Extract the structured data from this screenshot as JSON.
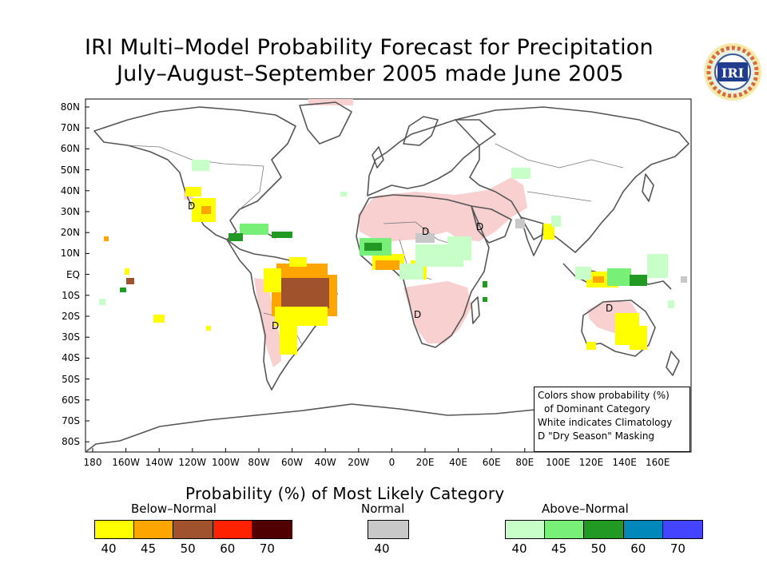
{
  "title_line1": "IRI Multi–Model Probability Forecast for Precipitation",
  "title_line2": "July–August–September 2005 made June 2005",
  "logo_text": "IRI",
  "lat_labels": [
    "80N",
    "70N",
    "60N",
    "50N",
    "40N",
    "30N",
    "20N",
    "10N",
    "EQ",
    "10S",
    "20S",
    "30S",
    "40S",
    "50S",
    "60S",
    "70S",
    "80S"
  ],
  "lon_labels": [
    "180",
    "160W",
    "140W",
    "120W",
    "100W",
    "80W",
    "60W",
    "40W",
    "20W",
    "0",
    "20E",
    "40E",
    "60E",
    "80E",
    "100E",
    "120E",
    "140E",
    "160E"
  ],
  "legend_box": {
    "line1": "Colors show probability (%)",
    "line2": "of Dominant Category",
    "line3": "White indicates Climatology",
    "line4_symbol": "D",
    "line4_text": "\"Dry Season\" Masking"
  },
  "dry_season_marker": "D",
  "colorbar": {
    "title": "Probability (%) of Most Likely Category",
    "below": {
      "label": "Below–Normal",
      "colors": [
        "#ffff00",
        "#ffa500",
        "#a0522d",
        "#ff2200",
        "#500000"
      ],
      "ticks": [
        "40",
        "45",
        "50",
        "60",
        "70"
      ]
    },
    "normal": {
      "label": "Normal",
      "colors": [
        "#c8c8c8"
      ],
      "ticks": [
        "40"
      ]
    },
    "above": {
      "label": "Above–Normal",
      "colors": [
        "#c8ffc8",
        "#78f078",
        "#229922",
        "#0088bb",
        "#4444ff"
      ],
      "ticks": [
        "40",
        "45",
        "50",
        "60",
        "70"
      ]
    }
  },
  "map_colors": {
    "land_outline": "#555555",
    "frame": "#000000",
    "climatology": "#ffffff",
    "dry_mask_pink": "#f8d0d0"
  }
}
